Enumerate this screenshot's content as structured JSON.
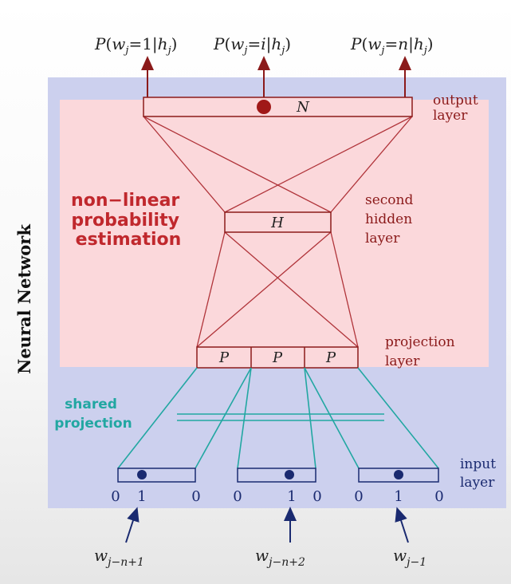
{
  "side_label": "Neural Network",
  "output_probs": [
    {
      "p": "P",
      "w": "w",
      "wsub": "j",
      "eq": "=1|",
      "h": "h",
      "hsub": "j"
    },
    {
      "p": "P",
      "w": "w",
      "wsub": "j",
      "eq": "=",
      "mid": "i",
      "bar": "|",
      "h": "h",
      "hsub": "j"
    },
    {
      "p": "P",
      "w": "w",
      "wsub": "j",
      "eq": "=",
      "mid": "n",
      "bar": "|",
      "h": "h",
      "hsub": "j"
    }
  ],
  "layers": {
    "output": {
      "box_label": "N",
      "label_lines": [
        "output",
        "layer"
      ]
    },
    "hidden": {
      "box_label": "H",
      "label_lines": [
        "second",
        "hidden",
        "layer"
      ]
    },
    "projection": {
      "box_labels": [
        "P",
        "P",
        "P"
      ],
      "label_lines": [
        "projection",
        "layer"
      ]
    },
    "input": {
      "label_lines": [
        "input",
        "layer"
      ]
    }
  },
  "nonlinear_label": [
    "non−linear",
    "probability",
    "estimation"
  ],
  "shared_projection_label": [
    "shared",
    "projection"
  ],
  "input_groups": [
    {
      "digits": [
        "0",
        "1",
        "0"
      ],
      "word": "w",
      "word_sub": "j−n+1"
    },
    {
      "digits": [
        "0",
        "1",
        "0"
      ],
      "word": "w",
      "word_sub": "j−n+2"
    },
    {
      "digits": [
        "0",
        "1",
        "0"
      ],
      "word": "w",
      "word_sub": "j−1"
    }
  ],
  "colors": {
    "panel_bg": "#ccd0ee",
    "nonlinear_bg": "#fbd8db",
    "maroon": "#8b1a1a",
    "red_label": "#c0282d",
    "teal": "#22a7a2",
    "navy": "#1a2a70"
  }
}
